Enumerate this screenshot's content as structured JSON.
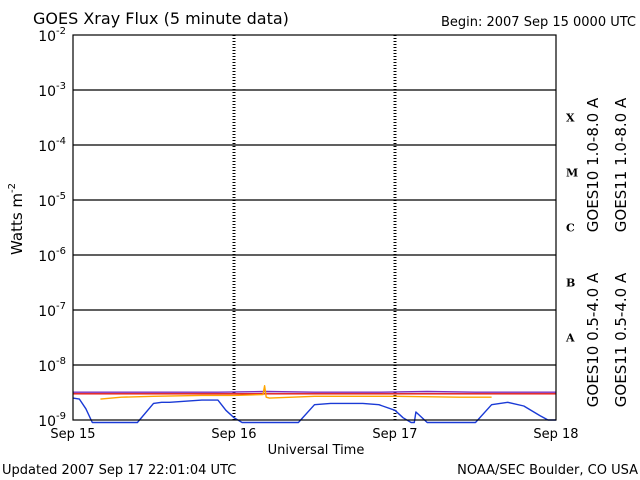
{
  "header": {
    "title": "GOES Xray Flux (5 minute data)",
    "begin": "Begin:  2007 Sep 15 0000 UTC"
  },
  "footer": {
    "updated": "Updated 2007 Sep 17 22:01:04 UTC",
    "source": "NOAA/SEC Boulder, CO USA"
  },
  "colors": {
    "goes10_long": "#7b2fbe",
    "goes11_long": "#e01010",
    "goes10_short": "#ffa500",
    "goes11_short": "#1a3ad6",
    "background": "#ffffff",
    "axis": "#000000"
  },
  "chart_data": {
    "type": "line",
    "title": "GOES Xray Flux (5 minute data)",
    "xlabel": "Universal Time",
    "ylabel": "Watts m",
    "ylabel_sup": "-2",
    "yscale": "log",
    "ylim": [
      1e-09,
      0.01
    ],
    "xlim": [
      "2007-09-15 00:00",
      "2007-09-18 00:00"
    ],
    "x_ticks": [
      "Sep 15",
      "Sep 16",
      "Sep 17",
      "Sep 18"
    ],
    "y_ticks": [
      {
        "value": 1e-09,
        "base": "10",
        "exp": "-9"
      },
      {
        "value": 1e-08,
        "base": "10",
        "exp": "-8"
      },
      {
        "value": 1e-07,
        "base": "10",
        "exp": "-7"
      },
      {
        "value": 1e-06,
        "base": "10",
        "exp": "-6"
      },
      {
        "value": 1e-05,
        "base": "10",
        "exp": "-5"
      },
      {
        "value": 0.0001,
        "base": "10",
        "exp": "-4"
      },
      {
        "value": 0.001,
        "base": "10",
        "exp": "-3"
      },
      {
        "value": 0.01,
        "base": "10",
        "exp": "-2"
      }
    ],
    "flare_classes": [
      {
        "label": "X",
        "value": 0.0001
      },
      {
        "label": "M",
        "value": 1e-05
      },
      {
        "label": "C",
        "value": 1e-06
      },
      {
        "label": "B",
        "value": 1e-07
      },
      {
        "label": "A",
        "value": 1e-08
      }
    ],
    "grid": true,
    "legend": {
      "placement": "right",
      "long_band": [
        {
          "name": "GOES10 1.0-8.0 A",
          "color": "#7b2fbe"
        },
        {
          "name": "GOES11 1.0-8.0 A",
          "color": "#e01010"
        }
      ],
      "short_band": [
        {
          "name": "GOES10 0.5-4.0 A",
          "color": "#ffa500"
        },
        {
          "name": "GOES11 0.5-4.0 A",
          "color": "#1a3ad6"
        }
      ]
    },
    "series": [
      {
        "name": "GOES10 1.0-8.0 A",
        "color": "#7b2fbe",
        "x_days": [
          0.0,
          0.5,
          0.9,
          1.2,
          1.5,
          1.9,
          2.2,
          2.5,
          3.0
        ],
        "y": [
          3.2e-09,
          3.2e-09,
          3.2e-09,
          3.3e-09,
          3.2e-09,
          3.2e-09,
          3.3e-09,
          3.2e-09,
          3.2e-09
        ]
      },
      {
        "name": "GOES11 1.0-8.0 A",
        "color": "#e01010",
        "x_days": [
          0.0,
          0.4,
          0.8,
          1.2,
          1.6,
          2.0,
          2.4,
          2.8,
          3.0
        ],
        "y": [
          3e-09,
          3e-09,
          3e-09,
          3e-09,
          3e-09,
          3e-09,
          3e-09,
          3e-09,
          3e-09
        ]
      },
      {
        "name": "GOES10 0.5-4.0 A",
        "color": "#ffa500",
        "x_days": [
          0.17,
          0.3,
          0.5,
          0.8,
          1.0,
          1.18,
          1.19,
          1.2,
          1.22,
          1.5,
          1.8,
          2.0,
          2.4,
          2.6
        ],
        "y": [
          2.4e-09,
          2.6e-09,
          2.7e-09,
          2.8e-09,
          2.8e-09,
          2.9e-09,
          4.2e-09,
          2.6e-09,
          2.5e-09,
          2.7e-09,
          2.7e-09,
          2.7e-09,
          2.6e-09,
          2.6e-09
        ]
      },
      {
        "name": "GOES11 0.5-4.0 A",
        "color": "#1a3ad6",
        "x_days": [
          0.0,
          0.04,
          0.08,
          0.12,
          0.15,
          0.2,
          0.3,
          0.4,
          0.5,
          0.55,
          0.6,
          0.7,
          0.8,
          0.9,
          0.95,
          1.0,
          1.05,
          1.1,
          1.2,
          1.4,
          1.5,
          1.6,
          1.8,
          1.9,
          2.0,
          2.05,
          2.1,
          2.12,
          2.13,
          2.2,
          2.4,
          2.5,
          2.6,
          2.7,
          2.8,
          2.9,
          2.95,
          3.0
        ],
        "y": [
          2.5e-09,
          2.4e-09,
          1.6e-09,
          9e-10,
          9e-10,
          9e-10,
          9e-10,
          9e-10,
          2e-09,
          2.1e-09,
          2.1e-09,
          2.2e-09,
          2.3e-09,
          2.3e-09,
          1.5e-09,
          1.1e-09,
          9e-10,
          9e-10,
          9e-10,
          9e-10,
          1.9e-09,
          2e-09,
          2e-09,
          1.9e-09,
          1.5e-09,
          1.1e-09,
          9e-10,
          9e-10,
          1.4e-09,
          9e-10,
          9e-10,
          9e-10,
          1.9e-09,
          2.1e-09,
          1.8e-09,
          1.2e-09,
          1e-09,
          1e-09
        ]
      }
    ]
  }
}
